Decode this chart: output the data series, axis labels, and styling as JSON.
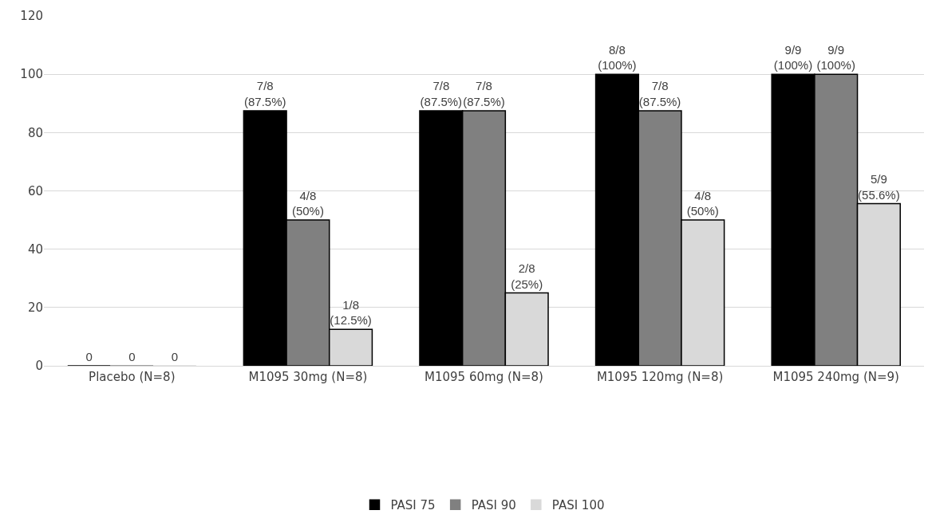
{
  "chart_data": {
    "type": "bar",
    "categories": [
      "Placebo (N=8)",
      "M1095 30mg (N=8)",
      "M1095 60mg (N=8)",
      "M1095 120mg (N=8)",
      "M1095 240mg (N=9)"
    ],
    "series": [
      {
        "name": "PASI 75",
        "color": "#000000",
        "values": [
          0,
          87.5,
          87.5,
          100,
          100
        ],
        "value_labels": [
          "0",
          "7/8\n(87.5%)",
          "7/8\n(87.5%)",
          "8/8\n(100%)",
          "9/9\n(100%)"
        ]
      },
      {
        "name": "PASI 90",
        "color": "#808080",
        "values": [
          0,
          50,
          87.5,
          87.5,
          100
        ],
        "value_labels": [
          "0",
          "4/8\n(50%)",
          "7/8\n(87.5%)",
          "7/8\n(87.5%)",
          "9/9\n(100%)"
        ]
      },
      {
        "name": "PASI 100",
        "color": "#d9d9d9",
        "values": [
          0,
          12.5,
          25,
          50,
          55.6
        ],
        "value_labels": [
          "0",
          "1/8\n(12.5%)",
          "2/8\n(25%)",
          "4/8\n(50%)",
          "5/9\n(55.6%)"
        ]
      }
    ],
    "ylim": [
      0,
      120
    ],
    "yticks": [
      0,
      20,
      40,
      60,
      80,
      100,
      120
    ],
    "grid": "y",
    "legend": "bottom"
  }
}
